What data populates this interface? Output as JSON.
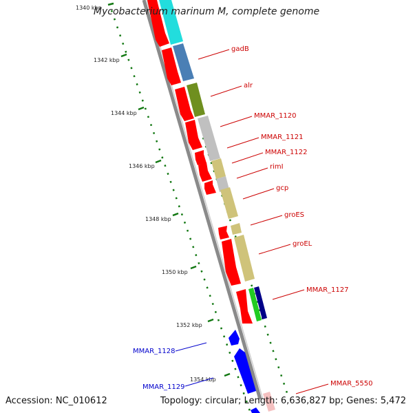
{
  "title": "Mycobacterium marinum M, complete genome",
  "footer": {
    "accession": "Accession: NC_010612",
    "summary": "Topology: circular; Length: 6,636,827 bp; Genes: 5,472"
  },
  "ruler": {
    "ticks": [
      "1340 kbp",
      "1342 kbp",
      "1344 kbp",
      "1346 kbp",
      "1348 kbp",
      "1350 kbp",
      "1352 kbp",
      "1354 kbp"
    ]
  },
  "colors": {
    "forward_gene": "#ff0000",
    "reverse_gene": "#0000ff",
    "forward_label": "#cc0000",
    "reverse_label": "#0000cc",
    "tick": "#117711",
    "backbone": "#8a8a8a"
  },
  "forward_genes": [
    "gadB",
    "alr",
    "MMAR_1120",
    "MMAR_1121",
    "MMAR_1122",
    "rimI",
    "gcp",
    "groES",
    "groEL",
    "MMAR_1127"
  ],
  "reverse_genes": [
    "MMAR_1128",
    "MMAR_1129"
  ],
  "edge_gene": "MMAR_5550"
}
